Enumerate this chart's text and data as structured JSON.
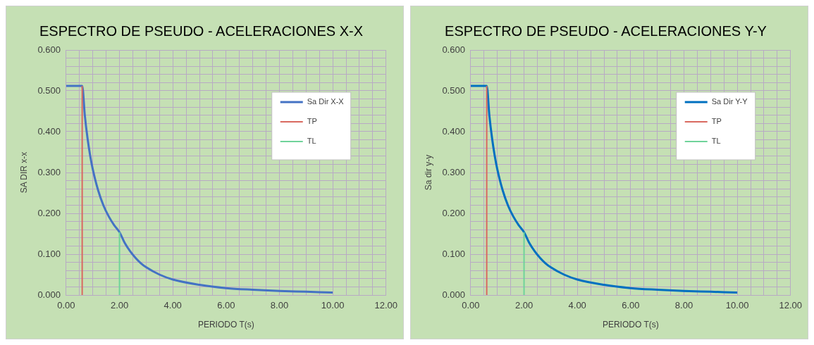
{
  "chart_data": [
    {
      "type": "line",
      "title": "ESPECTRO DE PSEUDO - ACELERACIONES X-X",
      "xlabel": "PERIODO T(s)",
      "ylabel": "SA DIR x-x",
      "legend": "top right",
      "grid": true,
      "marker": "none",
      "line_style": "solid",
      "xlim": [
        0,
        12
      ],
      "ylim": [
        0,
        0.6
      ],
      "xticks": [
        {
          "value": 0,
          "label": "0.00"
        },
        {
          "value": 0.5,
          "label": null
        },
        {
          "value": 1,
          "label": null
        },
        {
          "value": 1.5,
          "label": null
        },
        {
          "value": 2,
          "label": "2.00"
        },
        {
          "value": 2.5,
          "label": null
        },
        {
          "value": 3,
          "label": null
        },
        {
          "value": 3.5,
          "label": null
        },
        {
          "value": 4,
          "label": "4.00"
        },
        {
          "value": 4.5,
          "label": null
        },
        {
          "value": 5,
          "label": null
        },
        {
          "value": 5.5,
          "label": null
        },
        {
          "value": 6,
          "label": "6.00"
        },
        {
          "value": 6.5,
          "label": null
        },
        {
          "value": 7,
          "label": null
        },
        {
          "value": 7.5,
          "label": null
        },
        {
          "value": 8,
          "label": "8.00"
        },
        {
          "value": 8.5,
          "label": null
        },
        {
          "value": 9,
          "label": null
        },
        {
          "value": 9.5,
          "label": null
        },
        {
          "value": 10,
          "label": "10.00"
        },
        {
          "value": 10.5,
          "label": null
        },
        {
          "value": 11,
          "label": null
        },
        {
          "value": 11.5,
          "label": null
        },
        {
          "value": 12,
          "label": "12.00"
        }
      ],
      "yticks": [
        {
          "value": 0,
          "label": "0.000"
        },
        {
          "value": 0.02,
          "label": null
        },
        {
          "value": 0.04,
          "label": null
        },
        {
          "value": 0.06,
          "label": null
        },
        {
          "value": 0.08,
          "label": null
        },
        {
          "value": 0.1,
          "label": "0.100"
        },
        {
          "value": 0.12,
          "label": null
        },
        {
          "value": 0.14,
          "label": null
        },
        {
          "value": 0.16,
          "label": null
        },
        {
          "value": 0.18,
          "label": null
        },
        {
          "value": 0.2,
          "label": "0.200"
        },
        {
          "value": 0.22,
          "label": null
        },
        {
          "value": 0.24,
          "label": null
        },
        {
          "value": 0.26,
          "label": null
        },
        {
          "value": 0.28,
          "label": null
        },
        {
          "value": 0.3,
          "label": "0.300"
        },
        {
          "value": 0.32,
          "label": null
        },
        {
          "value": 0.34,
          "label": null
        },
        {
          "value": 0.36,
          "label": null
        },
        {
          "value": 0.38,
          "label": null
        },
        {
          "value": 0.4,
          "label": "0.400"
        },
        {
          "value": 0.42,
          "label": null
        },
        {
          "value": 0.44,
          "label": null
        },
        {
          "value": 0.46,
          "label": null
        },
        {
          "value": 0.48,
          "label": null
        },
        {
          "value": 0.5,
          "label": "0.500"
        },
        {
          "value": 0.52,
          "label": null
        },
        {
          "value": 0.54,
          "label": null
        },
        {
          "value": 0.56,
          "label": null
        },
        {
          "value": 0.58,
          "label": null
        },
        {
          "value": 0.6,
          "label": "0.600"
        }
      ],
      "series": [
        {
          "name": "Sa Dir X-X",
          "color": "#4472c4",
          "x": [
            0,
            0.6,
            0.7,
            0.8,
            0.9,
            1.0,
            1.2,
            1.4,
            1.6,
            1.8,
            2.0,
            2.2,
            2.4,
            2.6,
            2.8,
            3.0,
            3.5,
            4.0,
            5.0,
            6.0,
            7.0,
            8.0,
            9.0,
            10.0
          ],
          "values": [
            0.512,
            0.512,
            0.439,
            0.384,
            0.341,
            0.307,
            0.256,
            0.219,
            0.192,
            0.171,
            0.154,
            0.127,
            0.107,
            0.091,
            0.078,
            0.068,
            0.05,
            0.038,
            0.025,
            0.017,
            0.013,
            0.01,
            0.008,
            0.006
          ]
        },
        {
          "name": "TP",
          "color": "#d9695f",
          "x": [
            0.6,
            0.6
          ],
          "values": [
            0,
            0.512
          ]
        },
        {
          "name": "TL",
          "color": "#6fd39a",
          "x": [
            2.0,
            2.0
          ],
          "values": [
            0,
            0.154
          ]
        }
      ]
    },
    {
      "type": "line",
      "title": "ESPECTRO DE PSEUDO - ACELERACIONES Y-Y",
      "xlabel": "PERIODO T(s)",
      "ylabel": "Sa dir y-y",
      "legend": "top right",
      "grid": true,
      "marker": "none",
      "line_style": "solid",
      "xlim": [
        0,
        12
      ],
      "ylim": [
        0,
        0.6
      ],
      "xticks": [
        {
          "value": 0,
          "label": "0.00"
        },
        {
          "value": 0.5,
          "label": null
        },
        {
          "value": 1,
          "label": null
        },
        {
          "value": 1.5,
          "label": null
        },
        {
          "value": 2,
          "label": "2.00"
        },
        {
          "value": 2.5,
          "label": null
        },
        {
          "value": 3,
          "label": null
        },
        {
          "value": 3.5,
          "label": null
        },
        {
          "value": 4,
          "label": "4.00"
        },
        {
          "value": 4.5,
          "label": null
        },
        {
          "value": 5,
          "label": null
        },
        {
          "value": 5.5,
          "label": null
        },
        {
          "value": 6,
          "label": "6.00"
        },
        {
          "value": 6.5,
          "label": null
        },
        {
          "value": 7,
          "label": null
        },
        {
          "value": 7.5,
          "label": null
        },
        {
          "value": 8,
          "label": "8.00"
        },
        {
          "value": 8.5,
          "label": null
        },
        {
          "value": 9,
          "label": null
        },
        {
          "value": 9.5,
          "label": null
        },
        {
          "value": 10,
          "label": "10.00"
        },
        {
          "value": 10.5,
          "label": null
        },
        {
          "value": 11,
          "label": null
        },
        {
          "value": 11.5,
          "label": null
        },
        {
          "value": 12,
          "label": "12.00"
        }
      ],
      "yticks": [
        {
          "value": 0,
          "label": "0.000"
        },
        {
          "value": 0.02,
          "label": null
        },
        {
          "value": 0.04,
          "label": null
        },
        {
          "value": 0.06,
          "label": null
        },
        {
          "value": 0.08,
          "label": null
        },
        {
          "value": 0.1,
          "label": "0.100"
        },
        {
          "value": 0.12,
          "label": null
        },
        {
          "value": 0.14,
          "label": null
        },
        {
          "value": 0.16,
          "label": null
        },
        {
          "value": 0.18,
          "label": null
        },
        {
          "value": 0.2,
          "label": "0.200"
        },
        {
          "value": 0.22,
          "label": null
        },
        {
          "value": 0.24,
          "label": null
        },
        {
          "value": 0.26,
          "label": null
        },
        {
          "value": 0.28,
          "label": null
        },
        {
          "value": 0.3,
          "label": "0.300"
        },
        {
          "value": 0.32,
          "label": null
        },
        {
          "value": 0.34,
          "label": null
        },
        {
          "value": 0.36,
          "label": null
        },
        {
          "value": 0.38,
          "label": null
        },
        {
          "value": 0.4,
          "label": "0.400"
        },
        {
          "value": 0.42,
          "label": null
        },
        {
          "value": 0.44,
          "label": null
        },
        {
          "value": 0.46,
          "label": null
        },
        {
          "value": 0.48,
          "label": null
        },
        {
          "value": 0.5,
          "label": "0.500"
        },
        {
          "value": 0.52,
          "label": null
        },
        {
          "value": 0.54,
          "label": null
        },
        {
          "value": 0.56,
          "label": null
        },
        {
          "value": 0.58,
          "label": null
        },
        {
          "value": 0.6,
          "label": "0.600"
        }
      ],
      "series": [
        {
          "name": "Sa Dir Y-Y",
          "color": "#0070c0",
          "x": [
            0,
            0.6,
            0.7,
            0.8,
            0.9,
            1.0,
            1.2,
            1.4,
            1.6,
            1.8,
            2.0,
            2.2,
            2.4,
            2.6,
            2.8,
            3.0,
            3.5,
            4.0,
            5.0,
            6.0,
            7.0,
            8.0,
            9.0,
            10.0
          ],
          "values": [
            0.512,
            0.512,
            0.439,
            0.384,
            0.341,
            0.307,
            0.256,
            0.219,
            0.192,
            0.171,
            0.154,
            0.127,
            0.107,
            0.091,
            0.078,
            0.068,
            0.05,
            0.038,
            0.025,
            0.017,
            0.013,
            0.01,
            0.008,
            0.006
          ]
        },
        {
          "name": "TP",
          "color": "#d9695f",
          "x": [
            0.6,
            0.6
          ],
          "values": [
            0,
            0.512
          ]
        },
        {
          "name": "TL",
          "color": "#6fd39a",
          "x": [
            2.0,
            2.0
          ],
          "values": [
            0,
            0.154
          ]
        }
      ]
    }
  ]
}
